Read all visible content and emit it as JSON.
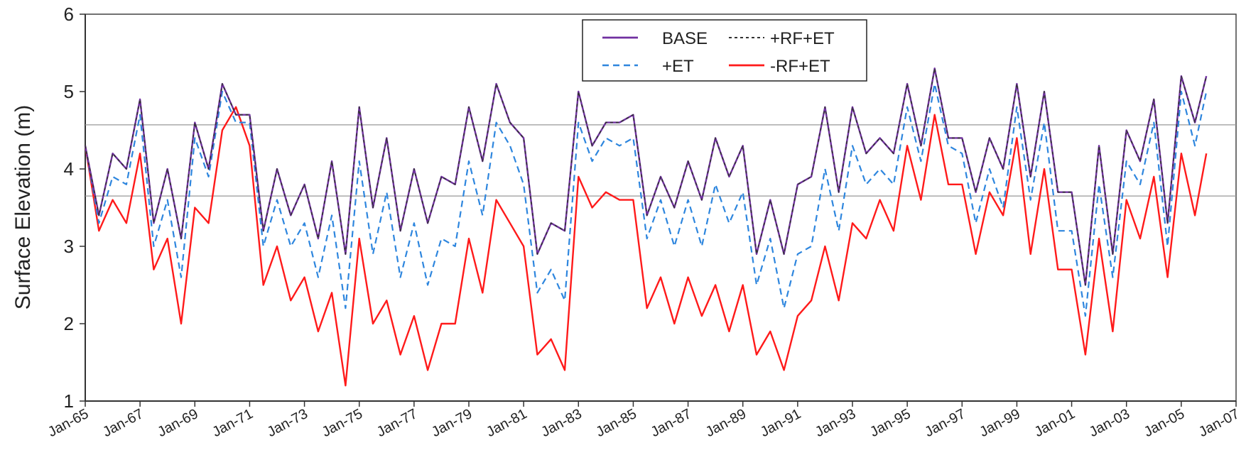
{
  "chart_data": {
    "type": "line",
    "title": "",
    "xlabel": "",
    "ylabel": "Surface Elevation (m)",
    "xlim": [
      "1965-01",
      "2007-01"
    ],
    "ylim": [
      1,
      6
    ],
    "y_ticks": [
      1,
      2,
      3,
      4,
      5,
      6
    ],
    "x_ticks": [
      "Jan-65",
      "Jan-67",
      "Jan-69",
      "Jan-71",
      "Jan-73",
      "Jan-75",
      "Jan-77",
      "Jan-79",
      "Jan-81",
      "Jan-83",
      "Jan-85",
      "Jan-87",
      "Jan-89",
      "Jan-91",
      "Jan-93",
      "Jan-95",
      "Jan-97",
      "Jan-99",
      "Jan-01",
      "Jan-03",
      "Jan-05",
      "Jan-07"
    ],
    "grid": false,
    "reference_lines": [
      4.57,
      3.65
    ],
    "legend": {
      "placement": "top-center",
      "columns": 2
    },
    "colors": {
      "BASE": "#7030a0",
      "+ET": "#2e86de",
      "+RF+ET": "#333333",
      "-RF+ET": "#ff1a1a",
      "reference": "#999999"
    },
    "x": [
      "1965-01",
      "1965-07",
      "1966-01",
      "1966-07",
      "1967-01",
      "1967-07",
      "1968-01",
      "1968-07",
      "1969-01",
      "1969-07",
      "1970-01",
      "1970-07",
      "1971-01",
      "1971-07",
      "1972-01",
      "1972-07",
      "1973-01",
      "1973-07",
      "1974-01",
      "1974-07",
      "1975-01",
      "1975-07",
      "1976-01",
      "1976-07",
      "1977-01",
      "1977-07",
      "1978-01",
      "1978-07",
      "1979-01",
      "1979-07",
      "1980-01",
      "1980-07",
      "1981-01",
      "1981-07",
      "1982-01",
      "1982-07",
      "1983-01",
      "1983-07",
      "1984-01",
      "1984-07",
      "1985-01",
      "1985-07",
      "1986-01",
      "1986-07",
      "1987-01",
      "1987-07",
      "1988-01",
      "1988-07",
      "1989-01",
      "1989-07",
      "1990-01",
      "1990-07",
      "1991-01",
      "1991-07",
      "1992-01",
      "1992-07",
      "1993-01",
      "1993-07",
      "1994-01",
      "1994-07",
      "1995-01",
      "1995-07",
      "1996-01",
      "1996-07",
      "1997-01",
      "1997-07",
      "1998-01",
      "1998-07",
      "1999-01",
      "1999-07",
      "2000-01",
      "2000-07",
      "2001-01",
      "2001-07",
      "2002-01",
      "2002-07",
      "2003-01",
      "2003-07",
      "2004-01",
      "2004-07",
      "2005-01",
      "2005-07",
      "2005-12"
    ],
    "series": [
      {
        "name": "BASE",
        "style": "solid",
        "values": [
          4.3,
          3.4,
          4.2,
          4.0,
          4.9,
          3.3,
          4.0,
          3.1,
          4.6,
          4.0,
          5.1,
          4.7,
          4.7,
          3.2,
          4.0,
          3.4,
          3.8,
          3.1,
          4.1,
          2.9,
          4.8,
          3.5,
          4.4,
          3.2,
          4.0,
          3.3,
          3.9,
          3.8,
          4.8,
          4.1,
          5.1,
          4.6,
          4.4,
          2.9,
          3.3,
          3.2,
          5.0,
          4.3,
          4.6,
          4.6,
          4.7,
          3.4,
          3.9,
          3.5,
          4.1,
          3.6,
          4.4,
          3.9,
          4.3,
          2.9,
          3.6,
          2.9,
          3.8,
          3.9,
          4.8,
          3.7,
          4.8,
          4.2,
          4.4,
          4.2,
          5.1,
          4.3,
          5.3,
          4.4,
          4.4,
          3.7,
          4.4,
          4.0,
          5.1,
          3.9,
          5.0,
          3.7,
          3.7,
          2.5,
          4.3,
          2.9,
          4.5,
          4.1,
          4.9,
          3.3,
          5.2,
          4.6,
          5.2
        ]
      },
      {
        "name": "+ET",
        "style": "dashed",
        "values": [
          4.3,
          3.3,
          3.9,
          3.8,
          4.7,
          3.0,
          3.6,
          2.6,
          4.4,
          3.9,
          5.0,
          4.6,
          4.6,
          3.0,
          3.6,
          3.0,
          3.3,
          2.6,
          3.4,
          2.2,
          4.1,
          2.9,
          3.7,
          2.6,
          3.3,
          2.5,
          3.1,
          3.0,
          4.1,
          3.4,
          4.6,
          4.3,
          3.8,
          2.4,
          2.7,
          2.3,
          4.6,
          4.1,
          4.4,
          4.3,
          4.4,
          3.1,
          3.6,
          3.0,
          3.6,
          3.0,
          3.8,
          3.3,
          3.7,
          2.5,
          3.1,
          2.2,
          2.9,
          3.0,
          4.0,
          3.2,
          4.3,
          3.8,
          4.0,
          3.8,
          4.8,
          4.1,
          5.1,
          4.3,
          4.2,
          3.3,
          4.0,
          3.5,
          4.8,
          3.6,
          4.6,
          3.2,
          3.2,
          2.1,
          3.8,
          2.6,
          4.1,
          3.8,
          4.6,
          3.0,
          5.0,
          4.3,
          5.0
        ]
      },
      {
        "name": "+RF+ET",
        "style": "dotted",
        "values": [
          4.3,
          3.4,
          4.2,
          4.0,
          4.9,
          3.3,
          4.0,
          3.1,
          4.6,
          4.0,
          5.1,
          4.7,
          4.7,
          3.2,
          4.0,
          3.4,
          3.8,
          3.1,
          4.1,
          2.9,
          4.8,
          3.5,
          4.4,
          3.2,
          4.0,
          3.3,
          3.9,
          3.8,
          4.8,
          4.1,
          5.1,
          4.6,
          4.4,
          2.9,
          3.3,
          3.2,
          5.0,
          4.3,
          4.6,
          4.6,
          4.7,
          3.4,
          3.9,
          3.5,
          4.1,
          3.6,
          4.4,
          3.9,
          4.3,
          2.9,
          3.6,
          2.9,
          3.8,
          3.9,
          4.8,
          3.7,
          4.8,
          4.2,
          4.4,
          4.2,
          5.1,
          4.3,
          5.3,
          4.4,
          4.4,
          3.7,
          4.4,
          4.0,
          5.1,
          3.9,
          5.0,
          3.7,
          3.7,
          2.5,
          4.3,
          2.9,
          4.5,
          4.1,
          4.9,
          3.3,
          5.2,
          4.6,
          5.2
        ]
      },
      {
        "name": "-RF+ET",
        "style": "solid",
        "values": [
          4.3,
          3.2,
          3.6,
          3.3,
          4.2,
          2.7,
          3.1,
          2.0,
          3.5,
          3.3,
          4.5,
          4.8,
          4.3,
          2.5,
          3.0,
          2.3,
          2.6,
          1.9,
          2.4,
          1.2,
          3.1,
          2.0,
          2.3,
          1.6,
          2.1,
          1.4,
          2.0,
          2.0,
          3.1,
          2.4,
          3.6,
          3.3,
          3.0,
          1.6,
          1.8,
          1.4,
          3.9,
          3.5,
          3.7,
          3.6,
          3.6,
          2.2,
          2.6,
          2.0,
          2.6,
          2.1,
          2.5,
          1.9,
          2.5,
          1.6,
          1.9,
          1.4,
          2.1,
          2.3,
          3.0,
          2.3,
          3.3,
          3.1,
          3.6,
          3.2,
          4.3,
          3.6,
          4.7,
          3.8,
          3.8,
          2.9,
          3.7,
          3.4,
          4.4,
          2.9,
          4.0,
          2.7,
          2.7,
          1.6,
          3.1,
          1.9,
          3.6,
          3.1,
          3.9,
          2.6,
          4.2,
          3.4,
          4.2
        ]
      }
    ]
  }
}
